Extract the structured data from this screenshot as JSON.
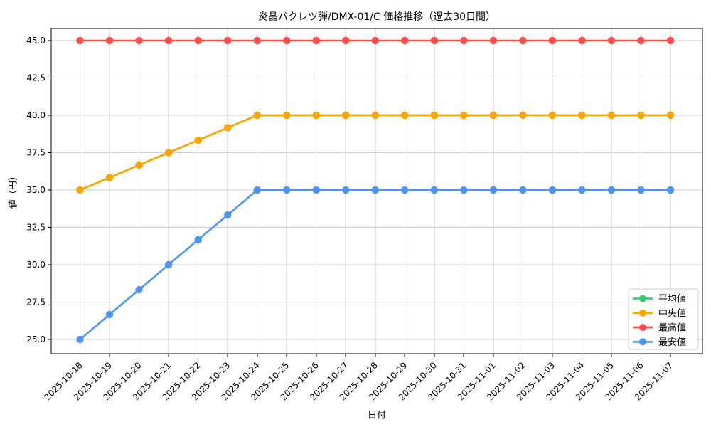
{
  "figure": {
    "background": "#ffffff",
    "spine_color": "#000000",
    "grid_color": "#cccccc",
    "tick_label_color": "#000000"
  },
  "chart_data": {
    "type": "line",
    "title": "炎晶バクレツ弾/DMX-01/C 価格推移（過去30日間）",
    "xlabel": "日付",
    "ylabel": "値（円）",
    "grid": true,
    "legend_position": "lower right",
    "x": [
      "2025-10-18",
      "2025-10-19",
      "2025-10-20",
      "2025-10-21",
      "2025-10-22",
      "2025-10-23",
      "2025-10-24",
      "2025-10-25",
      "2025-10-26",
      "2025-10-27",
      "2025-10-28",
      "2025-10-29",
      "2025-10-30",
      "2025-10-31",
      "2025-11-01",
      "2025-11-02",
      "2025-11-03",
      "2025-11-04",
      "2025-11-05",
      "2025-11-06",
      "2025-11-07"
    ],
    "y_ticks": [
      25.0,
      27.5,
      30.0,
      32.5,
      35.0,
      37.5,
      40.0,
      42.5,
      45.0
    ],
    "y_tick_labels": [
      "25.0",
      "27.5",
      "30.0",
      "32.5",
      "35.0",
      "37.5",
      "40.0",
      "42.5",
      "45.0"
    ],
    "ylim": [
      24.05,
      45.81
    ],
    "series": [
      {
        "name": "平均値",
        "color": "#2ecc71",
        "values": [
          35.0,
          35.83,
          36.67,
          37.5,
          38.33,
          39.17,
          40.0,
          40.0,
          40.0,
          40.0,
          40.0,
          40.0,
          40.0,
          40.0,
          40.0,
          40.0,
          40.0,
          40.0,
          40.0,
          40.0,
          40.0
        ]
      },
      {
        "name": "中央値",
        "color": "#ffa502",
        "values": [
          35.0,
          35.83,
          36.67,
          37.5,
          38.33,
          39.17,
          40.0,
          40.0,
          40.0,
          40.0,
          40.0,
          40.0,
          40.0,
          40.0,
          40.0,
          40.0,
          40.0,
          40.0,
          40.0,
          40.0,
          40.0
        ]
      },
      {
        "name": "最高値",
        "color": "#ff4d4d",
        "values": [
          45.0,
          45.0,
          45.0,
          45.0,
          45.0,
          45.0,
          45.0,
          45.0,
          45.0,
          45.0,
          45.0,
          45.0,
          45.0,
          45.0,
          45.0,
          45.0,
          45.0,
          45.0,
          45.0,
          45.0,
          45.0
        ]
      },
      {
        "name": "最安値",
        "color": "#4d94f5",
        "values": [
          25.0,
          26.67,
          28.33,
          30.0,
          31.67,
          33.33,
          35.0,
          35.0,
          35.0,
          35.0,
          35.0,
          35.0,
          35.0,
          35.0,
          35.0,
          35.0,
          35.0,
          35.0,
          35.0,
          35.0,
          35.0
        ]
      }
    ]
  }
}
